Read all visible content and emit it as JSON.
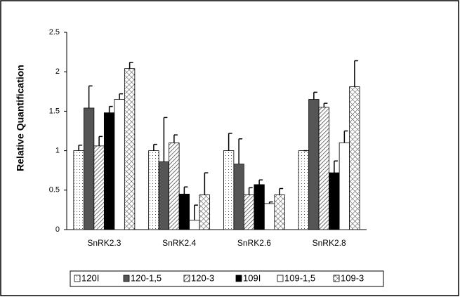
{
  "chart_data": {
    "type": "bar",
    "y_label": "Relative Quantification",
    "categories": [
      "SnRK2.3",
      "SnRK2.4",
      "SnRK2.6",
      "SnRK2.8"
    ],
    "series": [
      {
        "name": "120I",
        "color": "#ffffff",
        "pattern": "dots",
        "values": [
          1.0,
          1.0,
          1.0,
          1.0
        ],
        "errors": [
          0.07,
          0.08,
          0.22,
          0
        ]
      },
      {
        "name": "120-1,5",
        "color": "#555555",
        "pattern": "solid",
        "values": [
          1.54,
          0.86,
          0.83,
          1.65
        ],
        "errors": [
          0.28,
          0.56,
          0.32,
          0.09
        ]
      },
      {
        "name": "120-3",
        "color": "#ffffff",
        "pattern": "hatch",
        "values": [
          1.06,
          1.1,
          0.44,
          1.55
        ],
        "errors": [
          0.12,
          0.1,
          0.09,
          0.05
        ]
      },
      {
        "name": "109I",
        "color": "#000000",
        "pattern": "solid",
        "values": [
          1.48,
          0.45,
          0.57,
          0.72
        ],
        "errors": [
          0.08,
          0.09,
          0.06,
          0.15
        ]
      },
      {
        "name": "109-1,5",
        "color": "#ffffff",
        "pattern": "solid",
        "values": [
          1.65,
          0.12,
          0.33,
          1.1
        ],
        "errors": [
          0.07,
          0.19,
          0.02,
          0.15
        ]
      },
      {
        "name": "109-3",
        "color": "#ffffff",
        "pattern": "cross",
        "values": [
          2.04,
          0.44,
          0.44,
          1.81
        ],
        "errors": [
          0.08,
          0.28,
          0.08,
          0.33
        ]
      }
    ],
    "ylim": [
      0,
      2.5
    ],
    "yticks": [
      0,
      0.5,
      1,
      1.5,
      2,
      2.5
    ],
    "legend": "bottom"
  }
}
